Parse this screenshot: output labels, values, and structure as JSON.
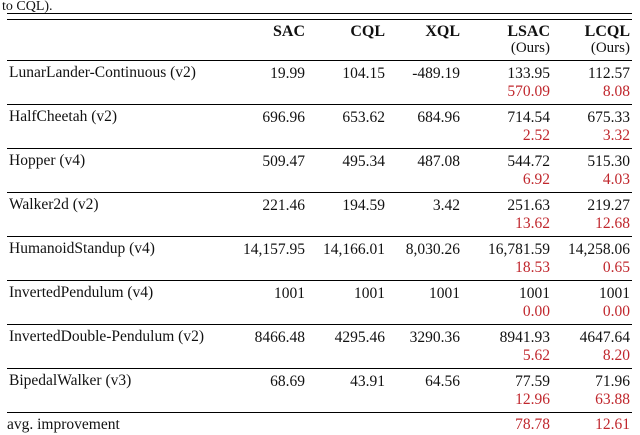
{
  "caption_fragment": "to CQL).",
  "colors": {
    "improvement_red": "#c0272d",
    "text_black": "#111111",
    "rule_black": "#000000"
  },
  "table": {
    "columns": [
      {
        "label": "",
        "sublabel": ""
      },
      {
        "label": "SAC",
        "sublabel": ""
      },
      {
        "label": "CQL",
        "sublabel": ""
      },
      {
        "label": "XQL",
        "sublabel": ""
      },
      {
        "label": "LSAC",
        "sublabel": "(Ours)"
      },
      {
        "label": "LCQL",
        "sublabel": "(Ours)"
      }
    ],
    "rows": [
      {
        "label": "LunarLander-Continuous (v2)",
        "values": [
          "19.99",
          "104.15",
          "-489.19",
          "133.95",
          "112.57"
        ],
        "improvements": [
          "",
          "",
          "",
          "570.09",
          "8.08"
        ]
      },
      {
        "label": "HalfCheetah (v2)",
        "values": [
          "696.96",
          "653.62",
          "684.96",
          "714.54",
          "675.33"
        ],
        "improvements": [
          "",
          "",
          "",
          "2.52",
          "3.32"
        ]
      },
      {
        "label": "Hopper (v4)",
        "values": [
          "509.47",
          "495.34",
          "487.08",
          "544.72",
          "515.30"
        ],
        "improvements": [
          "",
          "",
          "",
          "6.92",
          "4.03"
        ]
      },
      {
        "label": "Walker2d (v2)",
        "values": [
          "221.46",
          "194.59",
          "3.42",
          "251.63",
          "219.27"
        ],
        "improvements": [
          "",
          "",
          "",
          "13.62",
          "12.68"
        ]
      },
      {
        "label": "HumanoidStandup (v4)",
        "values": [
          "14,157.95",
          "14,166.01",
          "8,030.26",
          "16,781.59",
          "14,258.06"
        ],
        "improvements": [
          "",
          "",
          "",
          "18.53",
          "0.65"
        ]
      },
      {
        "label": "InvertedPendulum (v4)",
        "values": [
          "1001",
          "1001",
          "1001",
          "1001",
          "1001"
        ],
        "improvements": [
          "",
          "",
          "",
          "0.00",
          "0.00"
        ]
      },
      {
        "label": "InvertedDouble-Pendulum (v2)",
        "values": [
          "8466.48",
          "4295.46",
          "3290.36",
          "8941.93",
          "4647.64"
        ],
        "improvements": [
          "",
          "",
          "",
          "5.62",
          "8.20"
        ]
      },
      {
        "label": "BipedalWalker (v3)",
        "values": [
          "68.69",
          "43.91",
          "64.56",
          "77.59",
          "71.96"
        ],
        "improvements": [
          "",
          "",
          "",
          "12.96",
          "63.88"
        ]
      }
    ],
    "footer_row": {
      "label": "avg. improvement",
      "values": [
        "",
        "",
        "",
        "78.78",
        "12.61"
      ]
    }
  }
}
